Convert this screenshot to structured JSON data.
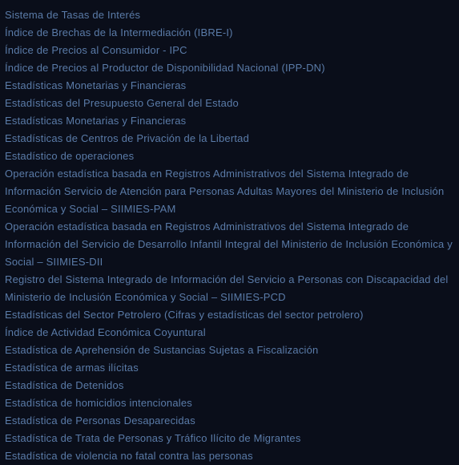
{
  "items": [
    "Sistema de Tasas de Interés",
    "Índice de Brechas de la Intermediación (IBRE-I)",
    "Índice de Precios al Consumidor - IPC",
    "Índice de Precios al Productor de Disponibilidad Nacional (IPP-DN)",
    "Estadísticas Monetarias y Financieras",
    "Estadísticas del Presupuesto General del Estado",
    "Estadísticas Monetarias y Financieras",
    "Estadísticas de Centros de Privación de la Libertad",
    "Estadístico de operaciones",
    "Operación estadística basada en Registros Administrativos del Sistema Integrado de Información Servicio de Atención para Personas Adultas Mayores del Ministerio de Inclusión Económica y Social – SIIMIES-PAM",
    "Operación estadística basada en Registros Administrativos del Sistema Integrado de Información del Servicio de Desarrollo Infantil Integral del Ministerio de Inclusión Económica y Social – SIIMIES-DII",
    "Registro del Sistema Integrado de Información del Servicio a Personas con Discapacidad del Ministerio de Inclusión Económica y Social – SIIMIES-PCD",
    "Estadísticas del Sector Petrolero (Cifras y estadísticas del sector petrolero)",
    "Índice de Actividad Económica Coyuntural",
    "Estadística de Aprehensión de Sustancias Sujetas a Fiscalización",
    "Estadística de armas ilícitas",
    "Estadística de Detenidos",
    "Estadística de homicidios intencionales",
    "Estadística de Personas Desaparecidas",
    "Estadística de Trata de Personas y Tráfico Ilícito de Migrantes",
    "Estadística de violencia no fatal contra las personas"
  ],
  "colors": {
    "background": "#0a0e1a",
    "text": "#5a7ba8",
    "text_hover": "#7a9bc8"
  },
  "typography": {
    "font_size": 13,
    "line_height": 22,
    "font_weight": 400,
    "letter_spacing": 0.2
  }
}
